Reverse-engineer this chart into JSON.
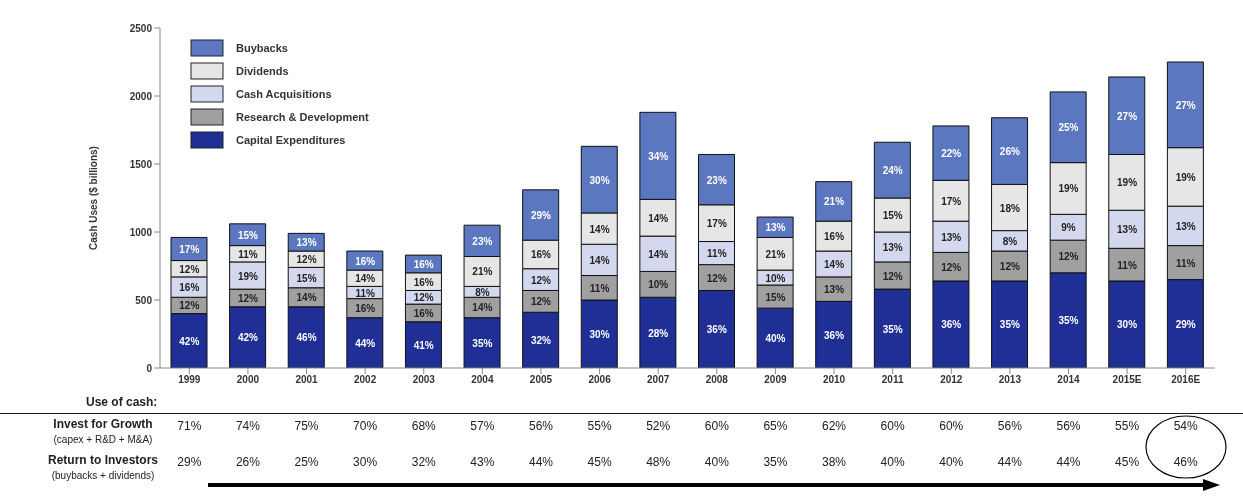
{
  "chart_data": {
    "type": "bar",
    "stacked": true,
    "ylabel": "Cash Uses ($ billions)",
    "categories": [
      "1999",
      "2000",
      "2001",
      "2002",
      "2003",
      "2004",
      "2005",
      "2006",
      "2007",
      "2008",
      "2009",
      "2010",
      "2011",
      "2012",
      "2013",
      "2014",
      "2015E",
      "2016E"
    ],
    "ylim": [
      0,
      2500
    ],
    "yticks": [
      0,
      500,
      1000,
      1500,
      2000,
      2500
    ],
    "grid": false,
    "legend": "top left",
    "series": [
      {
        "name": "Capital Expenditures",
        "color": "#1f2f96",
        "values": [
          400,
          450,
          450,
          370,
          340,
          370,
          410,
          500,
          520,
          570,
          440,
          490,
          580,
          640,
          640,
          700,
          640,
          650
        ]
      },
      {
        "name": "Research & Development",
        "color": "#a0a0a0",
        "values": [
          120,
          130,
          140,
          140,
          130,
          150,
          160,
          180,
          190,
          190,
          170,
          180,
          200,
          210,
          220,
          240,
          240,
          250
        ]
      },
      {
        "name": "Cash Acquisitions",
        "color": "#d4d8ee",
        "values": [
          150,
          200,
          150,
          90,
          100,
          80,
          160,
          230,
          260,
          170,
          110,
          190,
          220,
          230,
          150,
          190,
          280,
          290
        ]
      },
      {
        "name": "Dividends",
        "color": "#e6e6e6",
        "values": [
          120,
          120,
          120,
          120,
          130,
          220,
          210,
          230,
          270,
          270,
          240,
          220,
          250,
          300,
          340,
          380,
          410,
          430
        ]
      },
      {
        "name": "Buybacks",
        "color": "#5b77c0",
        "values": [
          170,
          160,
          130,
          140,
          130,
          230,
          370,
          490,
          640,
          370,
          150,
          290,
          410,
          400,
          490,
          520,
          570,
          630
        ]
      }
    ],
    "annotations": [
      "Use of cash:",
      "Invest for Growth",
      "(capex + R&D + M&A)",
      "71%",
      "74%",
      "75%",
      "70%",
      "68%",
      "57%",
      "56%",
      "55%",
      "52%",
      "60%",
      "65%",
      "62%",
      "60%",
      "60%",
      "56%",
      "56%",
      "55%",
      "54%",
      "Return to Investors",
      "(buybacks + dividends)",
      "29%",
      "26%",
      "25%",
      "30%",
      "32%",
      "43%",
      "44%",
      "45%",
      "48%",
      "40%",
      "35%",
      "38%",
      "40%",
      "40%",
      "44%",
      "44%",
      "45%",
      "46%",
      "42%",
      "12%",
      "16%",
      "12%",
      "17%",
      "42%",
      "12%",
      "19%",
      "11%",
      "15%",
      "46%",
      "14%",
      "15%",
      "12%",
      "13%",
      "44%",
      "16%",
      "11%",
      "14%",
      "16%",
      "41%",
      "16%",
      "12%",
      "16%",
      "16%",
      "35%",
      "14%",
      "8%",
      "21%",
      "23%",
      "32%",
      "12%",
      "12%",
      "16%",
      "29%",
      "30%",
      "11%",
      "14%",
      "14%",
      "30%",
      "28%",
      "10%",
      "14%",
      "14%",
      "34%",
      "36%",
      "12%",
      "11%",
      "17%",
      "23%",
      "40%",
      "15%",
      "10%",
      "21%",
      "13%",
      "36%",
      "13%",
      "14%",
      "16%",
      "21%",
      "35%",
      "12%",
      "13%",
      "15%",
      "24%",
      "36%",
      "12%",
      "13%",
      "17%",
      "22%",
      "35%",
      "12%",
      "8%",
      "18%",
      "26%",
      "35%",
      "12%",
      "9%",
      "19%",
      "25%",
      "30%",
      "11%",
      "13%",
      "19%",
      "27%",
      "29%",
      "11%",
      "13%",
      "19%",
      "27%"
    ]
  }
}
